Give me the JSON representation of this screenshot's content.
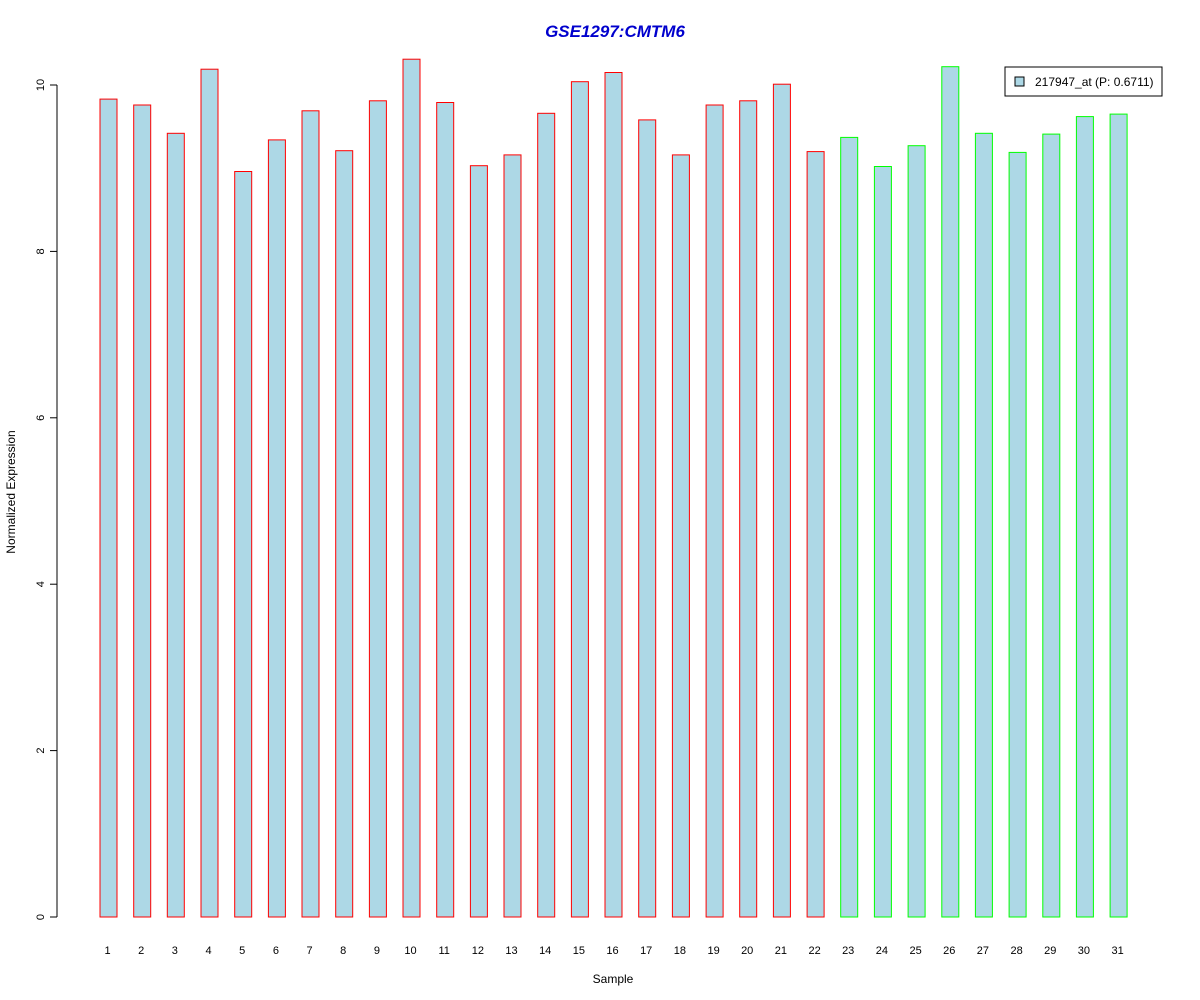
{
  "chart_data": {
    "type": "bar",
    "title": "GSE1297:CMTM6",
    "xlabel": "Sample",
    "ylabel": "Normalized Expression",
    "ylim": [
      0,
      10.4
    ],
    "yticks": [
      0,
      2,
      4,
      6,
      8,
      10
    ],
    "categories": [
      "1",
      "2",
      "3",
      "4",
      "5",
      "6",
      "7",
      "8",
      "9",
      "10",
      "11",
      "12",
      "13",
      "14",
      "15",
      "16",
      "17",
      "18",
      "19",
      "20",
      "21",
      "22",
      "23",
      "24",
      "25",
      "26",
      "27",
      "28",
      "29",
      "30",
      "31"
    ],
    "values": [
      9.83,
      9.76,
      9.42,
      10.19,
      8.96,
      9.34,
      9.69,
      9.21,
      9.81,
      10.31,
      9.79,
      9.03,
      9.16,
      9.66,
      10.04,
      10.15,
      9.58,
      9.16,
      9.76,
      9.81,
      10.01,
      9.2,
      9.37,
      9.02,
      9.27,
      10.22,
      9.42,
      9.19,
      9.41,
      9.62,
      9.65
    ],
    "groups": [
      "red",
      "red",
      "red",
      "red",
      "red",
      "red",
      "red",
      "red",
      "red",
      "red",
      "red",
      "red",
      "red",
      "red",
      "red",
      "red",
      "red",
      "red",
      "red",
      "red",
      "red",
      "red",
      "green",
      "green",
      "green",
      "green",
      "green",
      "green",
      "green",
      "green",
      "green"
    ],
    "legend": {
      "label": "217947_at (P: 0.6711)",
      "position": "top-right"
    },
    "colors": {
      "fill": "#add8e6",
      "group_red": "#ff0000",
      "group_green": "#00ff00",
      "title": "#0000cd"
    },
    "grid": false
  }
}
